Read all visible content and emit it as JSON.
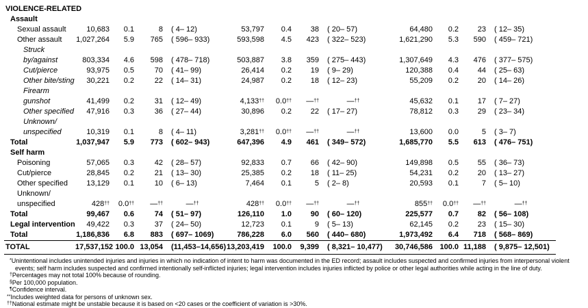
{
  "rows": [
    {
      "label": "VIOLENCE-RELATED",
      "style": "section",
      "indent": 0,
      "cells": null
    },
    {
      "label": "Assault",
      "style": "section",
      "indent": 1,
      "cells": null
    },
    {
      "label": "Sexual assault",
      "style": "normal",
      "indent": 2,
      "cells": [
        "10,683",
        "0.1",
        "8",
        "( 4– 12)",
        "53,797",
        "0.4",
        "38",
        "( 20– 57)",
        "64,480",
        "0.2",
        "23",
        "( 12– 35)"
      ]
    },
    {
      "label": "Other assault",
      "style": "normal",
      "indent": 2,
      "cells": [
        "1,027,264",
        "5.9",
        "765",
        "( 596– 933)",
        "593,598",
        "4.5",
        "423",
        "( 322– 523)",
        "1,621,290",
        "5.3",
        "590",
        "( 459– 721)"
      ]
    },
    {
      "label": "Struck\nby/against",
      "style": "italic",
      "indent": 3,
      "cells": [
        "803,334",
        "4.6",
        "598",
        "( 478– 718)",
        "503,887",
        "3.8",
        "359",
        "( 275– 443)",
        "1,307,649",
        "4.3",
        "476",
        "( 377– 575)"
      ]
    },
    {
      "label": "Cut/pierce",
      "style": "italic",
      "indent": 3,
      "cells": [
        "93,975",
        "0.5",
        "70",
        "( 41– 99)",
        "26,414",
        "0.2",
        "19",
        "( 9– 29)",
        "120,388",
        "0.4",
        "44",
        "( 25– 63)"
      ]
    },
    {
      "label": "Other bite/sting",
      "style": "italic",
      "indent": 3,
      "cells": [
        "30,221",
        "0.2",
        "22",
        "( 14– 31)",
        "24,987",
        "0.2",
        "18",
        "( 12– 23)",
        "55,209",
        "0.2",
        "20",
        "( 14– 26)"
      ]
    },
    {
      "label": "Firearm gunshot",
      "style": "italic",
      "indent": 3,
      "cells": [
        "41,499",
        "0.2",
        "31",
        "( 12– 49)",
        "4,133††",
        "0.0††",
        "—††",
        "—††",
        "45,632",
        "0.1",
        "17",
        "( 7– 27)"
      ]
    },
    {
      "label": "Other specified",
      "style": "italic",
      "indent": 3,
      "cells": [
        "47,916",
        "0.3",
        "36",
        "( 27– 44)",
        "30,896",
        "0.2",
        "22",
        "( 17– 27)",
        "78,812",
        "0.3",
        "29",
        "( 23– 34)"
      ]
    },
    {
      "label": "Unknown/\nunspecified",
      "style": "italic",
      "indent": 3,
      "cells": [
        "10,319",
        "0.1",
        "8",
        "( 4– 11)",
        "3,281††",
        "0.0††",
        "—††",
        "—††",
        "13,600",
        "0.0",
        "5",
        "( 3– 7)"
      ]
    },
    {
      "label": "Total",
      "style": "total",
      "indent": 1,
      "cells": [
        "1,037,947",
        "5.9",
        "773",
        "( 602– 943)",
        "647,396",
        "4.9",
        "461",
        "( 349– 572)",
        "1,685,770",
        "5.5",
        "613",
        "( 476– 751)"
      ]
    },
    {
      "label": "Self harm",
      "style": "section",
      "indent": 1,
      "cells": null
    },
    {
      "label": "Poisoning",
      "style": "normal",
      "indent": 2,
      "cells": [
        "57,065",
        "0.3",
        "42",
        "( 28– 57)",
        "92,833",
        "0.7",
        "66",
        "( 42– 90)",
        "149,898",
        "0.5",
        "55",
        "( 36– 73)"
      ]
    },
    {
      "label": "Cut/pierce",
      "style": "normal",
      "indent": 2,
      "cells": [
        "28,845",
        "0.2",
        "21",
        "( 13– 30)",
        "25,385",
        "0.2",
        "18",
        "( 11– 25)",
        "54,231",
        "0.2",
        "20",
        "( 13– 27)"
      ]
    },
    {
      "label": "Other specified",
      "style": "normal",
      "indent": 2,
      "cells": [
        "13,129",
        "0.1",
        "10",
        "( 6– 13)",
        "7,464",
        "0.1",
        "5",
        "( 2– 8)",
        "20,593",
        "0.1",
        "7",
        "( 5– 10)"
      ]
    },
    {
      "label": "Unknown/\nunspecified",
      "style": "normal",
      "indent": 2,
      "cells": [
        "428††",
        "0.0††",
        "—††",
        "—††",
        "428††",
        "0.0††",
        "—††",
        "—††",
        "855††",
        "0.0††",
        "—††",
        "—††"
      ]
    },
    {
      "label": "Total",
      "style": "total",
      "indent": 1,
      "cells": [
        "99,467",
        "0.6",
        "74",
        "( 51– 97)",
        "126,110",
        "1.0",
        "90",
        "( 60– 120)",
        "225,577",
        "0.7",
        "82",
        "( 56– 108)"
      ]
    },
    {
      "label": "Legal intervention",
      "style": "boldlabel",
      "indent": 1,
      "cells": [
        "49,422",
        "0.3",
        "37",
        "( 24– 50)",
        "12,723",
        "0.1",
        "9",
        "( 5– 13)",
        "62,145",
        "0.2",
        "23",
        "( 15– 30)"
      ]
    },
    {
      "label": "Total",
      "style": "total",
      "indent": 1,
      "cells": [
        "1,186,836",
        "6.8",
        "883",
        "( 697– 1069)",
        "786,228",
        "6.0",
        "560",
        "( 440– 680)",
        "1,973,492",
        "6.4",
        "718",
        "( 568– 869)"
      ]
    },
    {
      "label": "TOTAL",
      "style": "grandtotal",
      "indent": 0,
      "cells": [
        "17,537,152",
        "100.0",
        "13,054",
        "(11,453–14,656)",
        "13,203,419",
        "100.0",
        "9,399",
        "( 8,321– 10,477)",
        "30,746,586",
        "100.0",
        "11,188",
        "( 9,875– 12,501)"
      ]
    }
  ],
  "footnotes": [
    {
      "marker": "*",
      "flush": false,
      "text": "Unintentional includes unintended injuries and injuries in which no indication of intent to harm was documented in the ED record; assault includes suspected and confirmed injuries from interpersonal violent events; self harm includes suspected and confirmed intentionally self-inflicted injuries; legal intervention includes injuries inflicted by police or other legal authorities while acting in the line of duty."
    },
    {
      "marker": "†",
      "flush": false,
      "text": "Percentages may not total 100% because of rounding."
    },
    {
      "marker": "§",
      "flush": false,
      "text": "Per 100,000 population."
    },
    {
      "marker": "¶",
      "flush": false,
      "text": "Confidence interval."
    },
    {
      "marker": "**",
      "flush": true,
      "text": "Includes weighted data for persons of unknown sex."
    },
    {
      "marker": "††",
      "flush": true,
      "text": "National estimate might be unstable because it is based on <20 cases or the coefficient of variation is >30%."
    }
  ]
}
